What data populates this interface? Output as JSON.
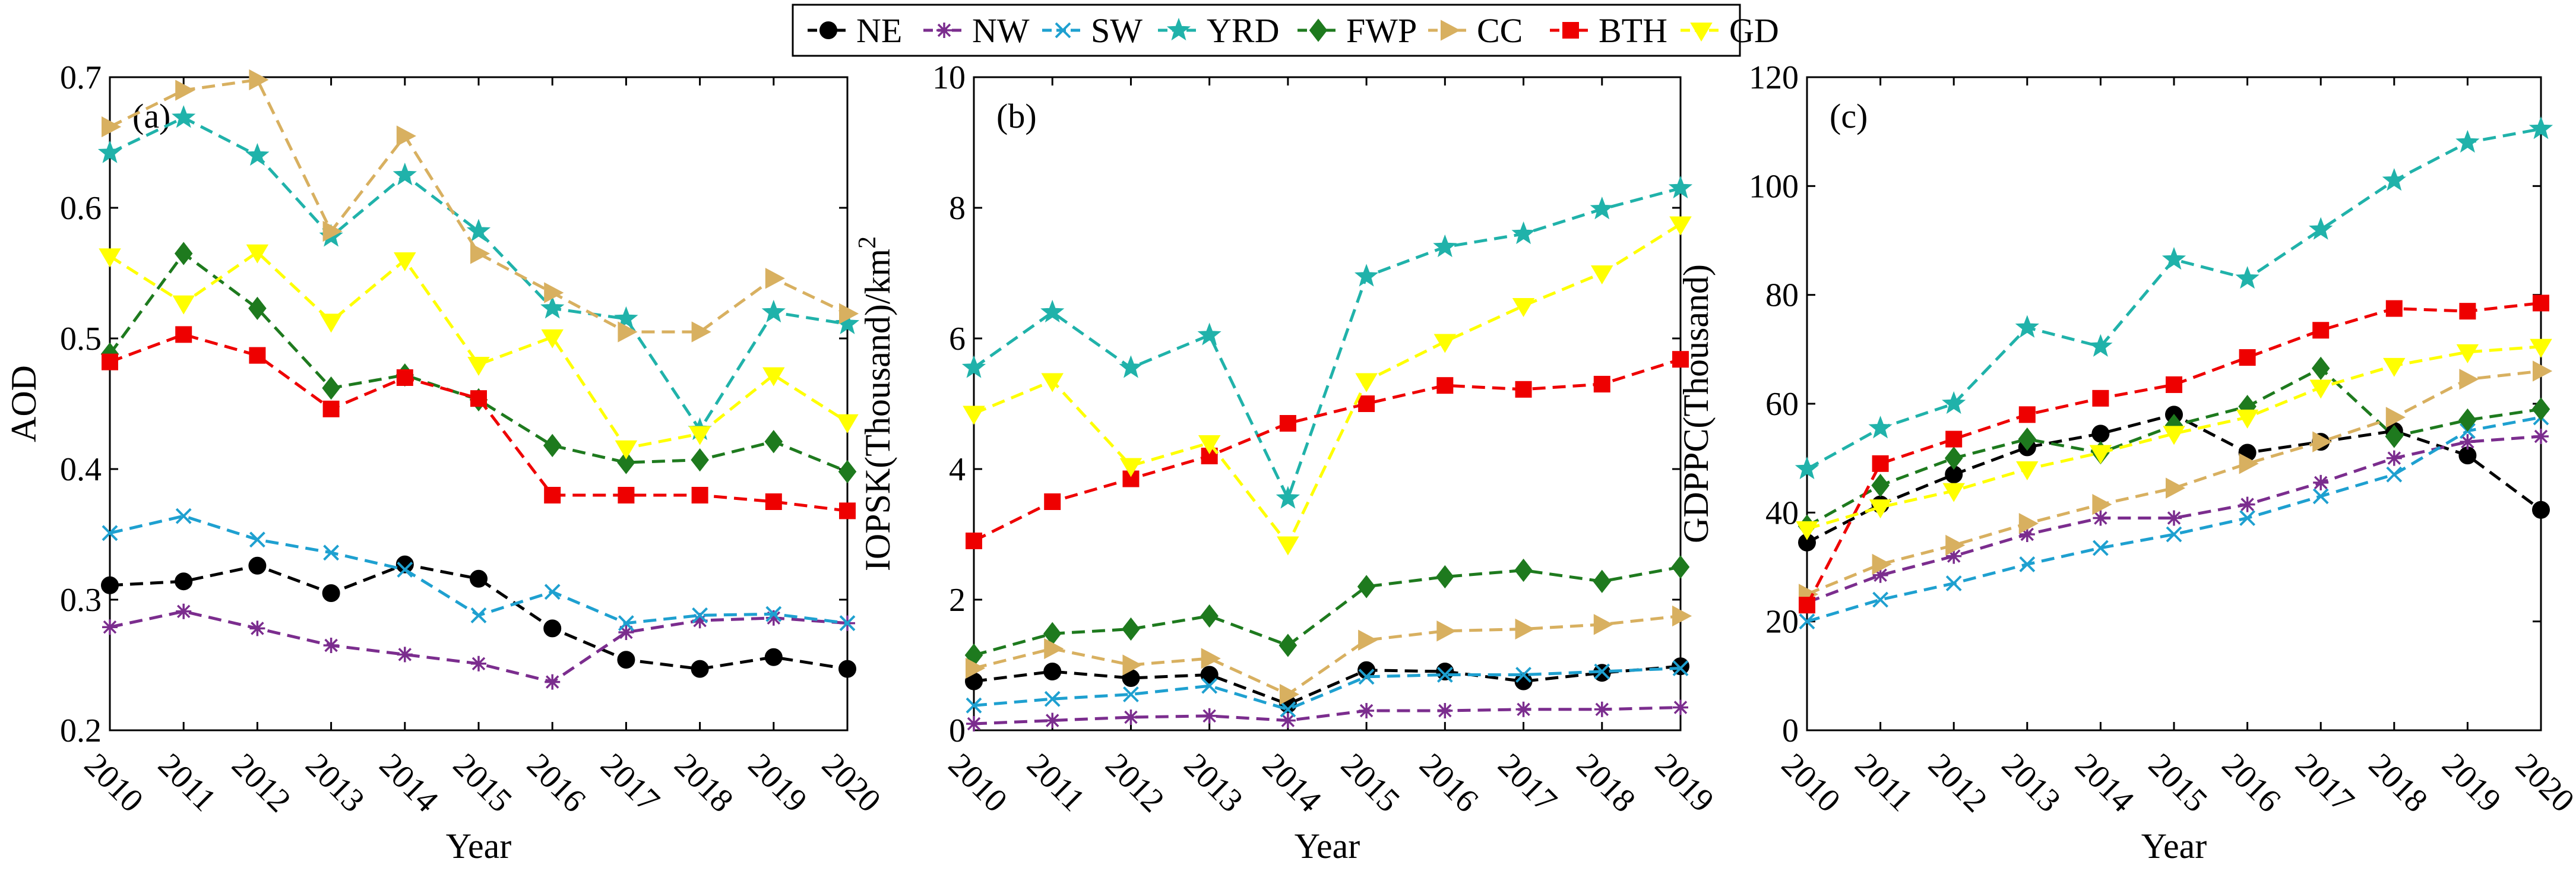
{
  "legend": [
    {
      "name": "NE",
      "color": "#000000",
      "marker": "circle"
    },
    {
      "name": "NW",
      "color": "#7B2D8E",
      "marker": "asterisk"
    },
    {
      "name": "SW",
      "color": "#1EA0D0",
      "marker": "x"
    },
    {
      "name": "YRD",
      "color": "#20B2AA",
      "marker": "star"
    },
    {
      "name": "FWP",
      "color": "#1E7A1E",
      "marker": "diamond"
    },
    {
      "name": "CC",
      "color": "#D8B060",
      "marker": "triangle-right"
    },
    {
      "name": "BTH",
      "color": "#EE0000",
      "marker": "square"
    },
    {
      "name": "GD",
      "color": "#FFFF00",
      "marker": "triangle-down"
    }
  ],
  "chart_data": [
    {
      "type": "line",
      "panel": "(a)",
      "xlabel": "Year",
      "ylabel": "AOD",
      "x": [
        2010,
        2011,
        2012,
        2013,
        2014,
        2015,
        2016,
        2017,
        2018,
        2019,
        2020
      ],
      "ylim": [
        0.2,
        0.7
      ],
      "yticks": [
        "0.2",
        "0.3",
        "0.4",
        "0.5",
        "0.6",
        "0.7"
      ],
      "series": [
        {
          "name": "NE",
          "values": [
            0.311,
            0.314,
            0.326,
            0.305,
            0.327,
            0.316,
            0.278,
            0.254,
            0.247,
            0.256,
            0.247
          ]
        },
        {
          "name": "NW",
          "values": [
            0.279,
            0.291,
            0.278,
            0.265,
            0.258,
            0.251,
            0.237,
            0.275,
            0.284,
            0.286,
            0.282
          ]
        },
        {
          "name": "SW",
          "values": [
            0.351,
            0.364,
            0.346,
            0.336,
            0.323,
            0.288,
            0.306,
            0.282,
            0.288,
            0.289,
            0.282
          ]
        },
        {
          "name": "YRD",
          "values": [
            0.642,
            0.669,
            0.64,
            0.578,
            0.625,
            0.582,
            0.523,
            0.515,
            0.43,
            0.52,
            0.511
          ]
        },
        {
          "name": "FWP",
          "values": [
            0.488,
            0.565,
            0.523,
            0.462,
            0.472,
            0.453,
            0.418,
            0.405,
            0.407,
            0.421,
            0.398
          ]
        },
        {
          "name": "CC",
          "values": [
            0.662,
            0.69,
            0.698,
            0.582,
            0.655,
            0.565,
            0.535,
            0.505,
            0.505,
            0.546,
            0.519
          ]
        },
        {
          "name": "BTH",
          "values": [
            0.482,
            0.503,
            0.487,
            0.446,
            0.47,
            0.454,
            0.38,
            0.38,
            0.38,
            0.375,
            0.368
          ]
        },
        {
          "name": "GD",
          "values": [
            0.563,
            0.527,
            0.566,
            0.513,
            0.56,
            0.48,
            0.501,
            0.416,
            0.427,
            0.472,
            0.436
          ]
        }
      ]
    },
    {
      "type": "line",
      "panel": "(b)",
      "xlabel": "Year",
      "ylabel": "IOPSK(Thousand)/km",
      "ylabel_sup": "2",
      "x": [
        2010,
        2011,
        2012,
        2013,
        2014,
        2015,
        2016,
        2017,
        2018,
        2019
      ],
      "ylim": [
        0,
        10
      ],
      "yticks": [
        "0",
        "2",
        "4",
        "6",
        "8",
        "10"
      ],
      "series": [
        {
          "name": "NE",
          "values": [
            0.75,
            0.9,
            0.8,
            0.85,
            0.4,
            0.92,
            0.9,
            0.75,
            0.88,
            0.98
          ]
        },
        {
          "name": "NW",
          "values": [
            0.1,
            0.15,
            0.2,
            0.22,
            0.15,
            0.3,
            0.3,
            0.32,
            0.32,
            0.35
          ]
        },
        {
          "name": "SW",
          "values": [
            0.38,
            0.48,
            0.55,
            0.68,
            0.32,
            0.82,
            0.85,
            0.85,
            0.9,
            0.95
          ]
        },
        {
          "name": "YRD",
          "values": [
            5.55,
            6.4,
            5.55,
            6.05,
            3.55,
            6.95,
            7.4,
            7.6,
            7.98,
            8.3
          ]
        },
        {
          "name": "FWP",
          "values": [
            1.15,
            1.48,
            1.55,
            1.75,
            1.3,
            2.2,
            2.35,
            2.45,
            2.28,
            2.5
          ]
        },
        {
          "name": "CC",
          "values": [
            0.95,
            1.25,
            1.0,
            1.1,
            0.55,
            1.38,
            1.52,
            1.55,
            1.62,
            1.75
          ]
        },
        {
          "name": "BTH",
          "values": [
            2.9,
            3.5,
            3.85,
            4.2,
            4.7,
            5.0,
            5.28,
            5.22,
            5.3,
            5.68
          ]
        },
        {
          "name": "GD",
          "values": [
            4.85,
            5.35,
            4.05,
            4.4,
            2.85,
            5.35,
            5.95,
            6.5,
            7.0,
            7.75
          ]
        }
      ]
    },
    {
      "type": "line",
      "panel": "(c)",
      "xlabel": "Year",
      "ylabel": "GDPPC(Thousand)",
      "x": [
        2010,
        2011,
        2012,
        2013,
        2014,
        2015,
        2016,
        2017,
        2018,
        2019,
        2020
      ],
      "ylim": [
        0,
        120
      ],
      "yticks": [
        "0",
        "20",
        "40",
        "60",
        "80",
        "100",
        "120"
      ],
      "series": [
        {
          "name": "NE",
          "values": [
            34.5,
            41.5,
            47.0,
            52.0,
            54.5,
            58.0,
            51.0,
            53.0,
            55.0,
            50.5,
            40.5
          ]
        },
        {
          "name": "NW",
          "values": [
            23.5,
            28.5,
            32.0,
            36.0,
            39.0,
            39.0,
            41.5,
            45.5,
            50.0,
            53.0,
            54.0
          ]
        },
        {
          "name": "SW",
          "values": [
            20.0,
            24.0,
            27.0,
            30.5,
            33.5,
            36.0,
            39.0,
            43.0,
            47.0,
            55.0,
            57.5
          ]
        },
        {
          "name": "YRD",
          "values": [
            48.0,
            55.5,
            60.0,
            74.0,
            70.5,
            86.5,
            83.0,
            92.0,
            101.0,
            108.0,
            110.5
          ]
        },
        {
          "name": "FWP",
          "values": [
            37.5,
            45.0,
            50.0,
            53.5,
            51.0,
            56.0,
            59.5,
            66.5,
            54.0,
            57.0,
            59.0
          ]
        },
        {
          "name": "CC",
          "values": [
            25.0,
            30.5,
            34.0,
            38.0,
            41.5,
            44.5,
            49.0,
            53.0,
            57.5,
            64.5,
            66.0
          ]
        },
        {
          "name": "BTH",
          "values": [
            23.0,
            49.0,
            53.5,
            58.0,
            61.0,
            63.5,
            68.5,
            73.5,
            77.5,
            77.0,
            78.5
          ]
        },
        {
          "name": "GD",
          "values": [
            37.0,
            41.0,
            44.0,
            48.0,
            51.0,
            54.5,
            57.5,
            63.0,
            67.0,
            69.5,
            70.5
          ]
        }
      ]
    }
  ]
}
